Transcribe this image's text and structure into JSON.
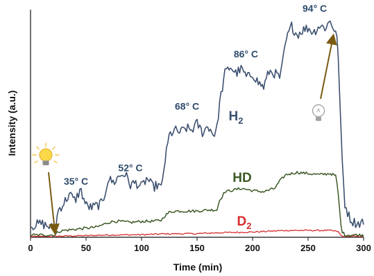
{
  "chart_data": {
    "type": "line",
    "xlabel": "Time (min)",
    "ylabel": "Intensity (a.u.)",
    "xlim": [
      0,
      300
    ],
    "ylim": [
      0,
      1
    ],
    "xticks": [
      0,
      50,
      100,
      150,
      200,
      250,
      300
    ],
    "grid": false,
    "legend": "inline labels",
    "series": [
      {
        "key": "h2",
        "label_main": "H",
        "label_sub": "2",
        "color": "#3d5070",
        "x": [
          0,
          10,
          20,
          22,
          25,
          30,
          35,
          40,
          45,
          50,
          55,
          60,
          65,
          70,
          72,
          75,
          80,
          85,
          90,
          95,
          100,
          105,
          110,
          115,
          118,
          120,
          125,
          130,
          135,
          140,
          145,
          150,
          155,
          160,
          165,
          168,
          170,
          175,
          180,
          185,
          190,
          195,
          200,
          205,
          210,
          215,
          220,
          225,
          230,
          235,
          240,
          245,
          250,
          255,
          260,
          265,
          270,
          275,
          277,
          280,
          283,
          287,
          290,
          295,
          300
        ],
        "y": [
          0.05,
          0.06,
          0.04,
          0.03,
          0.12,
          0.15,
          0.19,
          0.16,
          0.21,
          0.14,
          0.13,
          0.14,
          0.15,
          0.26,
          0.25,
          0.24,
          0.27,
          0.28,
          0.23,
          0.24,
          0.22,
          0.26,
          0.22,
          0.23,
          0.21,
          0.3,
          0.45,
          0.47,
          0.46,
          0.48,
          0.47,
          0.5,
          0.46,
          0.49,
          0.45,
          0.48,
          0.58,
          0.72,
          0.75,
          0.72,
          0.74,
          0.7,
          0.72,
          0.68,
          0.66,
          0.73,
          0.72,
          0.7,
          0.86,
          0.93,
          0.89,
          0.91,
          0.92,
          0.9,
          0.93,
          0.92,
          0.95,
          0.9,
          0.83,
          0.4,
          0.15,
          0.09,
          0.07,
          0.06,
          0.07
        ]
      },
      {
        "key": "hd",
        "label_main": "HD",
        "label_sub": "",
        "color": "#3d5a26",
        "x": [
          0,
          10,
          20,
          22,
          25,
          30,
          40,
          50,
          60,
          65,
          70,
          75,
          80,
          90,
          100,
          110,
          118,
          120,
          125,
          130,
          140,
          150,
          160,
          168,
          170,
          175,
          180,
          190,
          200,
          210,
          220,
          225,
          230,
          240,
          250,
          260,
          270,
          275,
          277,
          280,
          283,
          287,
          290,
          295,
          300
        ],
        "y": [
          0.01,
          0.01,
          0.01,
          0.01,
          0.025,
          0.03,
          0.035,
          0.04,
          0.045,
          0.055,
          0.065,
          0.07,
          0.07,
          0.065,
          0.07,
          0.07,
          0.075,
          0.09,
          0.11,
          0.115,
          0.115,
          0.115,
          0.12,
          0.12,
          0.16,
          0.2,
          0.205,
          0.215,
          0.205,
          0.2,
          0.215,
          0.25,
          0.275,
          0.285,
          0.28,
          0.275,
          0.28,
          0.27,
          0.2,
          0.03,
          0.01,
          0.01,
          0.01,
          0.01,
          0.01
        ]
      },
      {
        "key": "d2",
        "label_main": "D",
        "label_sub": "2",
        "color": "#d52b2b",
        "x": [
          0,
          20,
          25,
          50,
          70,
          100,
          120,
          150,
          170,
          200,
          230,
          270,
          277,
          280,
          300
        ],
        "y": [
          0.003,
          0.003,
          0.005,
          0.007,
          0.01,
          0.011,
          0.015,
          0.016,
          0.02,
          0.023,
          0.03,
          0.03,
          0.025,
          0.005,
          0.003
        ]
      }
    ],
    "annotations": [
      {
        "text": "35° C",
        "x": 41,
        "y": 0.24
      },
      {
        "text": "52° C",
        "x": 90,
        "y": 0.3
      },
      {
        "text": "68° C",
        "x": 141,
        "y": 0.57
      },
      {
        "text": "86° C",
        "x": 194,
        "y": 0.8
      },
      {
        "text": "94° C",
        "x": 256,
        "y": 1.0
      }
    ],
    "markers": [
      {
        "kind": "light-on",
        "arrow_to_x": 22,
        "arrow_to_y": 0.01
      },
      {
        "kind": "light-off",
        "arrow_to_x": 272,
        "arrow_to_y": 0.92
      }
    ]
  }
}
